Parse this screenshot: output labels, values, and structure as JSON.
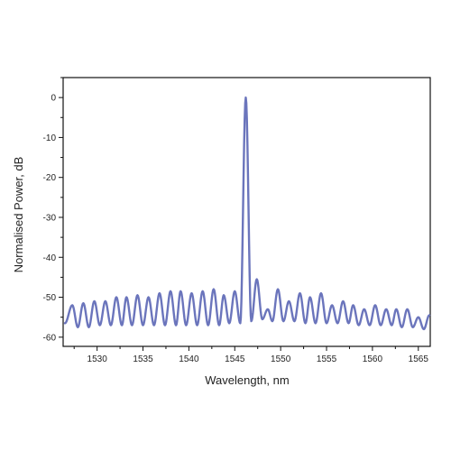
{
  "chart_data": {
    "type": "line",
    "xlabel": "Wavelength, nm",
    "ylabel": "Normalised Power, dB",
    "xlim": [
      1526.3,
      1566.3
    ],
    "ylim": [
      -62.3,
      5.0
    ],
    "xticks": [
      1530,
      1535,
      1540,
      1545,
      1550,
      1555,
      1560,
      1565
    ],
    "yticks": [
      0,
      -10,
      -20,
      -30,
      -40,
      -50,
      -60
    ],
    "minor_xticks_per_major": 2,
    "minor_yticks_per_major": 2,
    "grid": false,
    "line_color": "#6b75bc",
    "series": [
      {
        "peaks": [
          {
            "x": 1527.3,
            "y": -52.0
          },
          {
            "x": 1528.5,
            "y": -51.5
          },
          {
            "x": 1529.7,
            "y": -51.0
          },
          {
            "x": 1530.9,
            "y": -51.0
          },
          {
            "x": 1532.1,
            "y": -50.0
          },
          {
            "x": 1533.2,
            "y": -50.0
          },
          {
            "x": 1534.4,
            "y": -49.5
          },
          {
            "x": 1535.6,
            "y": -50.0
          },
          {
            "x": 1536.8,
            "y": -49.0
          },
          {
            "x": 1538.0,
            "y": -48.5
          },
          {
            "x": 1539.1,
            "y": -48.5
          },
          {
            "x": 1540.3,
            "y": -49.0
          },
          {
            "x": 1541.5,
            "y": -48.5
          },
          {
            "x": 1542.7,
            "y": -48.0
          },
          {
            "x": 1543.8,
            "y": -49.5
          },
          {
            "x": 1545.0,
            "y": -48.5
          },
          {
            "x": 1546.2,
            "y": 0.0
          },
          {
            "x": 1547.4,
            "y": -45.5
          },
          {
            "x": 1549.7,
            "y": -48.0
          },
          {
            "x": 1550.9,
            "y": -51.0
          },
          {
            "x": 1552.1,
            "y": -49.0
          },
          {
            "x": 1553.2,
            "y": -50.0
          },
          {
            "x": 1554.4,
            "y": -49.0
          },
          {
            "x": 1555.6,
            "y": -52.0
          },
          {
            "x": 1556.8,
            "y": -51.0
          },
          {
            "x": 1557.9,
            "y": -52.0
          },
          {
            "x": 1559.1,
            "y": -53.0
          },
          {
            "x": 1560.3,
            "y": -52.0
          },
          {
            "x": 1561.5,
            "y": -53.0
          },
          {
            "x": 1562.6,
            "y": -53.0
          },
          {
            "x": 1563.8,
            "y": -53.0
          },
          {
            "x": 1565.0,
            "y": -55.0
          },
          {
            "x": 1566.2,
            "y": -54.5
          }
        ],
        "troughs": [
          {
            "x": 1526.5,
            "y": -56.5
          },
          {
            "x": 1527.9,
            "y": -57.5
          },
          {
            "x": 1529.1,
            "y": -57.5
          },
          {
            "x": 1530.3,
            "y": -57.0
          },
          {
            "x": 1531.5,
            "y": -57.0
          },
          {
            "x": 1532.7,
            "y": -57.0
          },
          {
            "x": 1533.8,
            "y": -57.0
          },
          {
            "x": 1535.0,
            "y": -57.0
          },
          {
            "x": 1536.2,
            "y": -57.0
          },
          {
            "x": 1537.4,
            "y": -57.0
          },
          {
            "x": 1538.6,
            "y": -57.0
          },
          {
            "x": 1539.7,
            "y": -57.0
          },
          {
            "x": 1540.9,
            "y": -57.0
          },
          {
            "x": 1542.1,
            "y": -57.0
          },
          {
            "x": 1543.3,
            "y": -57.0
          },
          {
            "x": 1544.4,
            "y": -56.5
          },
          {
            "x": 1545.6,
            "y": -56.5
          },
          {
            "x": 1546.8,
            "y": -56.0
          },
          {
            "x": 1548.0,
            "y": -55.5
          },
          {
            "x": 1548.6,
            "y": -53.0
          },
          {
            "x": 1549.1,
            "y": -56.0
          },
          {
            "x": 1550.3,
            "y": -56.0
          },
          {
            "x": 1551.5,
            "y": -56.0
          },
          {
            "x": 1552.7,
            "y": -56.5
          },
          {
            "x": 1553.8,
            "y": -56.5
          },
          {
            "x": 1555.0,
            "y": -56.5
          },
          {
            "x": 1556.2,
            "y": -56.5
          },
          {
            "x": 1557.4,
            "y": -56.5
          },
          {
            "x": 1558.5,
            "y": -57.0
          },
          {
            "x": 1559.7,
            "y": -57.0
          },
          {
            "x": 1560.9,
            "y": -57.0
          },
          {
            "x": 1562.1,
            "y": -57.0
          },
          {
            "x": 1563.2,
            "y": -57.5
          },
          {
            "x": 1564.4,
            "y": -57.5
          },
          {
            "x": 1565.6,
            "y": -58.0
          }
        ]
      }
    ]
  }
}
